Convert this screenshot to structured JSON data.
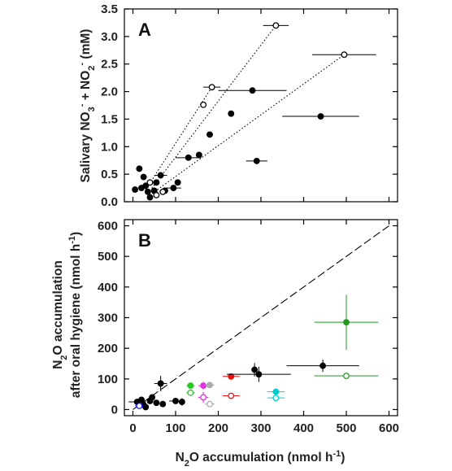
{
  "chart_data": [
    {
      "type": "scatter",
      "panel_label": "A",
      "ylabel": "Salivary NO3- + NO2- (mM)",
      "ylabel_parts": {
        "prefix": "Salivary NO",
        "sub1": "3",
        "sup1": "-",
        "middle": " + NO",
        "sub2": "2",
        "sup2": "-",
        "suffix": " (mM)"
      },
      "xlim": [
        -20,
        620
      ],
      "ylim": [
        0,
        3.5
      ],
      "yticks": [
        "0.0",
        "0.5",
        "1.0",
        "1.5",
        "2.0",
        "2.5",
        "3.0",
        "3.5"
      ],
      "series": [
        {
          "marker": "filled-circle",
          "color": "#000000",
          "points": [
            {
              "x": 5,
              "y": 0.22,
              "xerr": 0
            },
            {
              "x": 15,
              "y": 0.6,
              "xerr": 0
            },
            {
              "x": 20,
              "y": 0.25,
              "xerr": 0
            },
            {
              "x": 25,
              "y": 0.45,
              "xerr": 0
            },
            {
              "x": 30,
              "y": 0.29,
              "xerr": 0
            },
            {
              "x": 35,
              "y": 0.18,
              "xerr": 0
            },
            {
              "x": 40,
              "y": 0.08,
              "xerr": 0
            },
            {
              "x": 50,
              "y": 0.2,
              "xerr": 0
            },
            {
              "x": 55,
              "y": 0.35,
              "xerr": 0
            },
            {
              "x": 65,
              "y": 0.48,
              "xerr": 15
            },
            {
              "x": 75,
              "y": 0.2,
              "xerr": 0
            },
            {
              "x": 95,
              "y": 0.25,
              "xerr": 18
            },
            {
              "x": 105,
              "y": 0.35,
              "xerr": 0
            },
            {
              "x": 130,
              "y": 0.8,
              "xerr": 30
            },
            {
              "x": 155,
              "y": 0.85,
              "xerr": 0
            },
            {
              "x": 180,
              "y": 1.22,
              "xerr": 0
            },
            {
              "x": 230,
              "y": 1.6,
              "xerr": 0
            },
            {
              "x": 280,
              "y": 2.02,
              "xerr": 80
            },
            {
              "x": 290,
              "y": 0.74,
              "xerr": 25
            },
            {
              "x": 440,
              "y": 1.55,
              "xerr": 90
            }
          ]
        },
        {
          "marker": "open-circle",
          "color": "#000000",
          "points": [
            {
              "x": 40,
              "y": 0.35,
              "xerr": 0
            },
            {
              "x": 55,
              "y": 0.12,
              "xerr": 0
            },
            {
              "x": 70,
              "y": 0.18,
              "xerr": 0
            },
            {
              "x": 165,
              "y": 1.76,
              "xerr": 0
            },
            {
              "x": 185,
              "y": 2.08,
              "xerr": 20
            },
            {
              "x": 335,
              "y": 3.2,
              "xerr": 30
            },
            {
              "x": 495,
              "y": 2.67,
              "xerr": 75
            }
          ]
        }
      ],
      "reference_lines": [
        {
          "style": "dotted",
          "from": [
            30,
            0.22
          ],
          "to": [
            185,
            2.08
          ]
        },
        {
          "style": "dotted",
          "from": [
            35,
            0.15
          ],
          "to": [
            335,
            3.2
          ]
        },
        {
          "style": "dotted",
          "from": [
            45,
            0.15
          ],
          "to": [
            495,
            2.67
          ]
        }
      ]
    },
    {
      "type": "scatter",
      "panel_label": "B",
      "xlabel": "N2O accumulation (nmol h-1)",
      "xlabel_parts": {
        "prefix": "N",
        "sub": "2",
        "middle": "O accumulation (nmol h",
        "sup": "-1",
        "suffix": ")"
      },
      "ylabel_line1_parts": {
        "prefix": "N",
        "sub": "2",
        "suffix": "O accumulation"
      },
      "ylabel_line2_parts": {
        "prefix": "after oral hygiene (nmol h",
        "sup": "-1",
        "suffix": ")"
      },
      "xlim": [
        -20,
        620
      ],
      "ylim": [
        -20,
        620
      ],
      "xticks": [
        "0",
        "100",
        "200",
        "300",
        "400",
        "500",
        "600"
      ],
      "yticks": [
        "0",
        "100",
        "200",
        "300",
        "400",
        "500",
        "600"
      ],
      "reference_lines": [
        {
          "style": "dashed",
          "from": [
            0,
            0
          ],
          "to": [
            600,
            600
          ]
        }
      ],
      "points": [
        {
          "x": 10,
          "y": 25,
          "xerr": 20,
          "yerr": 0,
          "color": "#000000",
          "fill": true
        },
        {
          "x": 20,
          "y": 32,
          "xerr": 0,
          "yerr": 0,
          "color": "#000000",
          "fill": true
        },
        {
          "x": 25,
          "y": 15,
          "xerr": 0,
          "yerr": 0,
          "color": "#000000",
          "fill": true
        },
        {
          "x": 30,
          "y": 8,
          "xerr": 0,
          "yerr": 0,
          "color": "#000000",
          "fill": true
        },
        {
          "x": 40,
          "y": 28,
          "xerr": 0,
          "yerr": 0,
          "color": "#000000",
          "fill": true
        },
        {
          "x": 45,
          "y": 40,
          "xerr": 0,
          "yerr": 0,
          "color": "#000000",
          "fill": true
        },
        {
          "x": 55,
          "y": 22,
          "xerr": 0,
          "yerr": 0,
          "color": "#000000",
          "fill": true
        },
        {
          "x": 65,
          "y": 85,
          "xerr": 15,
          "yerr": 25,
          "color": "#000000",
          "fill": true
        },
        {
          "x": 70,
          "y": 18,
          "xerr": 0,
          "yerr": 0,
          "color": "#000000",
          "fill": true
        },
        {
          "x": 100,
          "y": 28,
          "xerr": 15,
          "yerr": 0,
          "color": "#000000",
          "fill": true
        },
        {
          "x": 115,
          "y": 25,
          "xerr": 0,
          "yerr": 12,
          "color": "#000000",
          "fill": true
        },
        {
          "x": 15,
          "y": 12,
          "xerr": 10,
          "yerr": 0,
          "color": "#1a1aff",
          "fill": false
        },
        {
          "x": 135,
          "y": 78,
          "xerr": 10,
          "yerr": 0,
          "color": "#22cc22",
          "fill": true
        },
        {
          "x": 135,
          "y": 55,
          "xerr": 10,
          "yerr": 0,
          "color": "#22cc22",
          "fill": false
        },
        {
          "x": 165,
          "y": 78,
          "xerr": 12,
          "yerr": 12,
          "color": "#e030e0",
          "fill": true
        },
        {
          "x": 165,
          "y": 40,
          "xerr": 12,
          "yerr": 18,
          "color": "#e030e0",
          "fill": false
        },
        {
          "x": 180,
          "y": 80,
          "xerr": 12,
          "yerr": 0,
          "color": "#aaaaaa",
          "fill": true
        },
        {
          "x": 180,
          "y": 18,
          "xerr": 12,
          "yerr": 0,
          "color": "#aaaaaa",
          "fill": false
        },
        {
          "x": 230,
          "y": 108,
          "xerr": 20,
          "yerr": 10,
          "color": "#ee1111",
          "fill": true
        },
        {
          "x": 230,
          "y": 45,
          "xerr": 20,
          "yerr": 0,
          "color": "#ee1111",
          "fill": false
        },
        {
          "x": 285,
          "y": 130,
          "xerr": 0,
          "yerr": 22,
          "color": "#000000",
          "fill": true
        },
        {
          "x": 295,
          "y": 115,
          "xerr": 75,
          "yerr": 25,
          "color": "#000000",
          "fill": true
        },
        {
          "x": 335,
          "y": 58,
          "xerr": 20,
          "yerr": 0,
          "color": "#00cccc",
          "fill": true
        },
        {
          "x": 335,
          "y": 38,
          "xerr": 20,
          "yerr": 0,
          "color": "#00cccc",
          "fill": false
        },
        {
          "x": 445,
          "y": 143,
          "xerr": 85,
          "yerr": 20,
          "color": "#000000",
          "fill": true
        },
        {
          "x": 500,
          "y": 285,
          "xerr": 75,
          "yerr": 90,
          "color": "#229922",
          "fill": true
        },
        {
          "x": 500,
          "y": 110,
          "xerr": 75,
          "yerr": 0,
          "color": "#229922",
          "fill": false
        }
      ]
    }
  ]
}
